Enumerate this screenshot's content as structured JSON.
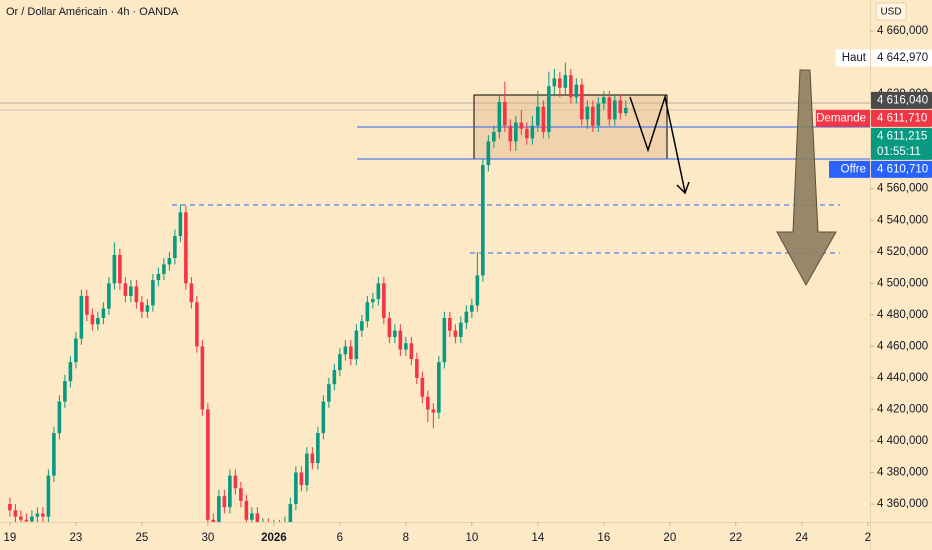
{
  "chart_data": {
    "type": "candlestick",
    "title": "Or / Dollar Américain · 4h · OANDA",
    "currency": "USD",
    "up_color": "#089981",
    "down_color": "#f23645",
    "grid": false,
    "xlim": [
      -1.8,
      156.4
    ],
    "ylim": [
      4348.6,
      4679.7
    ],
    "xticks": [
      {
        "value": 0,
        "label": "19"
      },
      {
        "value": 12,
        "label": "23"
      },
      {
        "value": 24,
        "label": "25"
      },
      {
        "value": 36,
        "label": "30"
      },
      {
        "value": 48,
        "label": "2026",
        "bold": true
      },
      {
        "value": 60,
        "label": "6"
      },
      {
        "value": 72,
        "label": "8"
      },
      {
        "value": 84,
        "label": "10"
      },
      {
        "value": 96,
        "label": "14"
      },
      {
        "value": 108,
        "label": "16"
      },
      {
        "value": 120,
        "label": "20"
      },
      {
        "value": 132,
        "label": "22"
      },
      {
        "value": 144,
        "label": "24"
      },
      {
        "value": 156,
        "label": "2"
      }
    ],
    "yticks": [
      {
        "value": 4360,
        "label": "4 360,000"
      },
      {
        "value": 4380,
        "label": "4 380,000"
      },
      {
        "value": 4400,
        "label": "4 400,000"
      },
      {
        "value": 4420,
        "label": "4 420,000"
      },
      {
        "value": 4440,
        "label": "4 440,000"
      },
      {
        "value": 4460,
        "label": "4 460,000"
      },
      {
        "value": 4480,
        "label": "4 480,000"
      },
      {
        "value": 4500,
        "label": "4 500,000"
      },
      {
        "value": 4520,
        "label": "4 520,000"
      },
      {
        "value": 4540,
        "label": "4 540,000"
      },
      {
        "value": 4560,
        "label": "4 560,000"
      },
      {
        "value": 4620,
        "label": "4 620,000"
      },
      {
        "value": 4660,
        "label": "4 660,000"
      }
    ],
    "markers": [
      {
        "name": "Haut",
        "value": 4642.97,
        "label": "4 642,970",
        "color": "#ffffff",
        "text_color": "#131722"
      },
      {
        "value": 4616.04,
        "label": "4 616,040",
        "color": "#4a4a4a",
        "text_color": "#ffffff"
      },
      {
        "name": "Demande",
        "value": 4611.71,
        "label": "4 611,710",
        "color": "#f23645",
        "text_color": "#ffffff"
      },
      {
        "value": 4611.215,
        "label": "4 611,215",
        "countdown": "01:55:11",
        "color": "#089981",
        "text_color": "#ffffff"
      },
      {
        "name": "Offre",
        "value": 4610.71,
        "label": "4 610,710",
        "color": "#2962ff",
        "text_color": "#ffffff"
      }
    ],
    "candles": {
      "open": [
        4360,
        4356,
        4352,
        4350,
        4349,
        4352,
        4354,
        4352,
        4378,
        4405,
        4425,
        4438,
        4450,
        4465,
        4492,
        4480,
        4474,
        4478,
        4484,
        4500,
        4518,
        4500,
        4492,
        4498,
        4488,
        4482,
        4486,
        4502,
        4506,
        4512,
        4516,
        4530,
        4545,
        4500,
        4488,
        4460,
        4420,
        4350,
        4340,
        4365,
        4358,
        4378,
        4370,
        4362,
        4350,
        4354,
        4345,
        4347,
        4344,
        4346,
        4343,
        4348,
        4360,
        4380,
        4372,
        4392,
        4386,
        4405,
        4425,
        4436,
        4445,
        4455,
        4460,
        4452,
        4470,
        4476,
        4488,
        4490,
        4500,
        4478,
        4466,
        4470,
        4458,
        4462,
        4452,
        4440,
        4428,
        4420,
        4418,
        4450,
        4478,
        4470,
        4466,
        4475,
        4482,
        4486,
        4505,
        4575,
        4590,
        4596,
        4615,
        4600,
        4590,
        4602,
        4598,
        4592,
        4600,
        4612,
        4596,
        4625,
        4630,
        4624,
        4632,
        4618,
        4626,
        4604,
        4612,
        4600,
        4614,
        4618,
        4604,
        4616,
        4608
      ],
      "high": [
        4364,
        4360,
        4356,
        4354,
        4356,
        4358,
        4358,
        4382,
        4409,
        4429,
        4442,
        4454,
        4469,
        4496,
        4496,
        4484,
        4482,
        4488,
        4504,
        4526,
        4522,
        4504,
        4502,
        4502,
        4492,
        4490,
        4506,
        4510,
        4516,
        4520,
        4534,
        4550,
        4549,
        4504,
        4492,
        4464,
        4424,
        4354,
        4369,
        4369,
        4382,
        4382,
        4374,
        4366,
        4358,
        4358,
        4351,
        4351,
        4350,
        4350,
        4352,
        4364,
        4384,
        4384,
        4396,
        4396,
        4409,
        4429,
        4440,
        4449,
        4459,
        4464,
        4464,
        4474,
        4480,
        4492,
        4494,
        4504,
        4504,
        4482,
        4474,
        4474,
        4466,
        4466,
        4456,
        4444,
        4432,
        4424,
        4454,
        4482,
        4482,
        4474,
        4479,
        4486,
        4490,
        4520,
        4579,
        4594,
        4600,
        4619,
        4628,
        4604,
        4606,
        4610,
        4602,
        4606,
        4622,
        4616,
        4634,
        4636,
        4634,
        4640,
        4636,
        4630,
        4630,
        4616,
        4616,
        4618,
        4622,
        4622,
        4620,
        4620,
        4616
      ],
      "low": [
        4352,
        4348,
        4346,
        4345,
        4345,
        4348,
        4348,
        4348,
        4374,
        4401,
        4421,
        4434,
        4446,
        4461,
        4476,
        4470,
        4470,
        4474,
        4480,
        4496,
        4496,
        4488,
        4488,
        4484,
        4478,
        4478,
        4482,
        4498,
        4502,
        4508,
        4512,
        4526,
        4496,
        4484,
        4456,
        4416,
        4346,
        4336,
        4336,
        4354,
        4354,
        4366,
        4358,
        4346,
        4346,
        4341,
        4341,
        4340,
        4340,
        4339,
        4339,
        4344,
        4356,
        4368,
        4368,
        4382,
        4382,
        4401,
        4421,
        4432,
        4441,
        4451,
        4448,
        4448,
        4466,
        4472,
        4484,
        4486,
        4474,
        4462,
        4462,
        4454,
        4454,
        4448,
        4436,
        4424,
        4412,
        4408,
        4414,
        4446,
        4466,
        4462,
        4462,
        4471,
        4478,
        4482,
        4501,
        4571,
        4586,
        4592,
        4596,
        4584,
        4584,
        4594,
        4588,
        4588,
        4596,
        4592,
        4592,
        4620,
        4618,
        4620,
        4614,
        4614,
        4600,
        4598,
        4596,
        4596,
        4610,
        4600,
        4600,
        4604,
        4606
      ],
      "close": [
        4356,
        4352,
        4350,
        4349,
        4352,
        4354,
        4352,
        4378,
        4405,
        4425,
        4438,
        4450,
        4465,
        4492,
        4480,
        4474,
        4478,
        4484,
        4500,
        4518,
        4500,
        4492,
        4498,
        4488,
        4482,
        4486,
        4502,
        4506,
        4512,
        4516,
        4530,
        4545,
        4500,
        4488,
        4460,
        4420,
        4350,
        4340,
        4365,
        4358,
        4378,
        4370,
        4362,
        4350,
        4354,
        4345,
        4347,
        4344,
        4346,
        4343,
        4348,
        4360,
        4380,
        4372,
        4392,
        4386,
        4405,
        4425,
        4436,
        4445,
        4455,
        4460,
        4452,
        4470,
        4476,
        4488,
        4490,
        4500,
        4478,
        4466,
        4470,
        4458,
        4462,
        4452,
        4440,
        4428,
        4420,
        4418,
        4450,
        4478,
        4470,
        4466,
        4475,
        4482,
        4486,
        4505,
        4575,
        4590,
        4596,
        4615,
        4600,
        4590,
        4602,
        4598,
        4592,
        4600,
        4612,
        4596,
        4625,
        4630,
        4624,
        4632,
        4618,
        4626,
        4604,
        4612,
        4600,
        4614,
        4618,
        4604,
        4616,
        4608,
        4611.215
      ]
    }
  }
}
